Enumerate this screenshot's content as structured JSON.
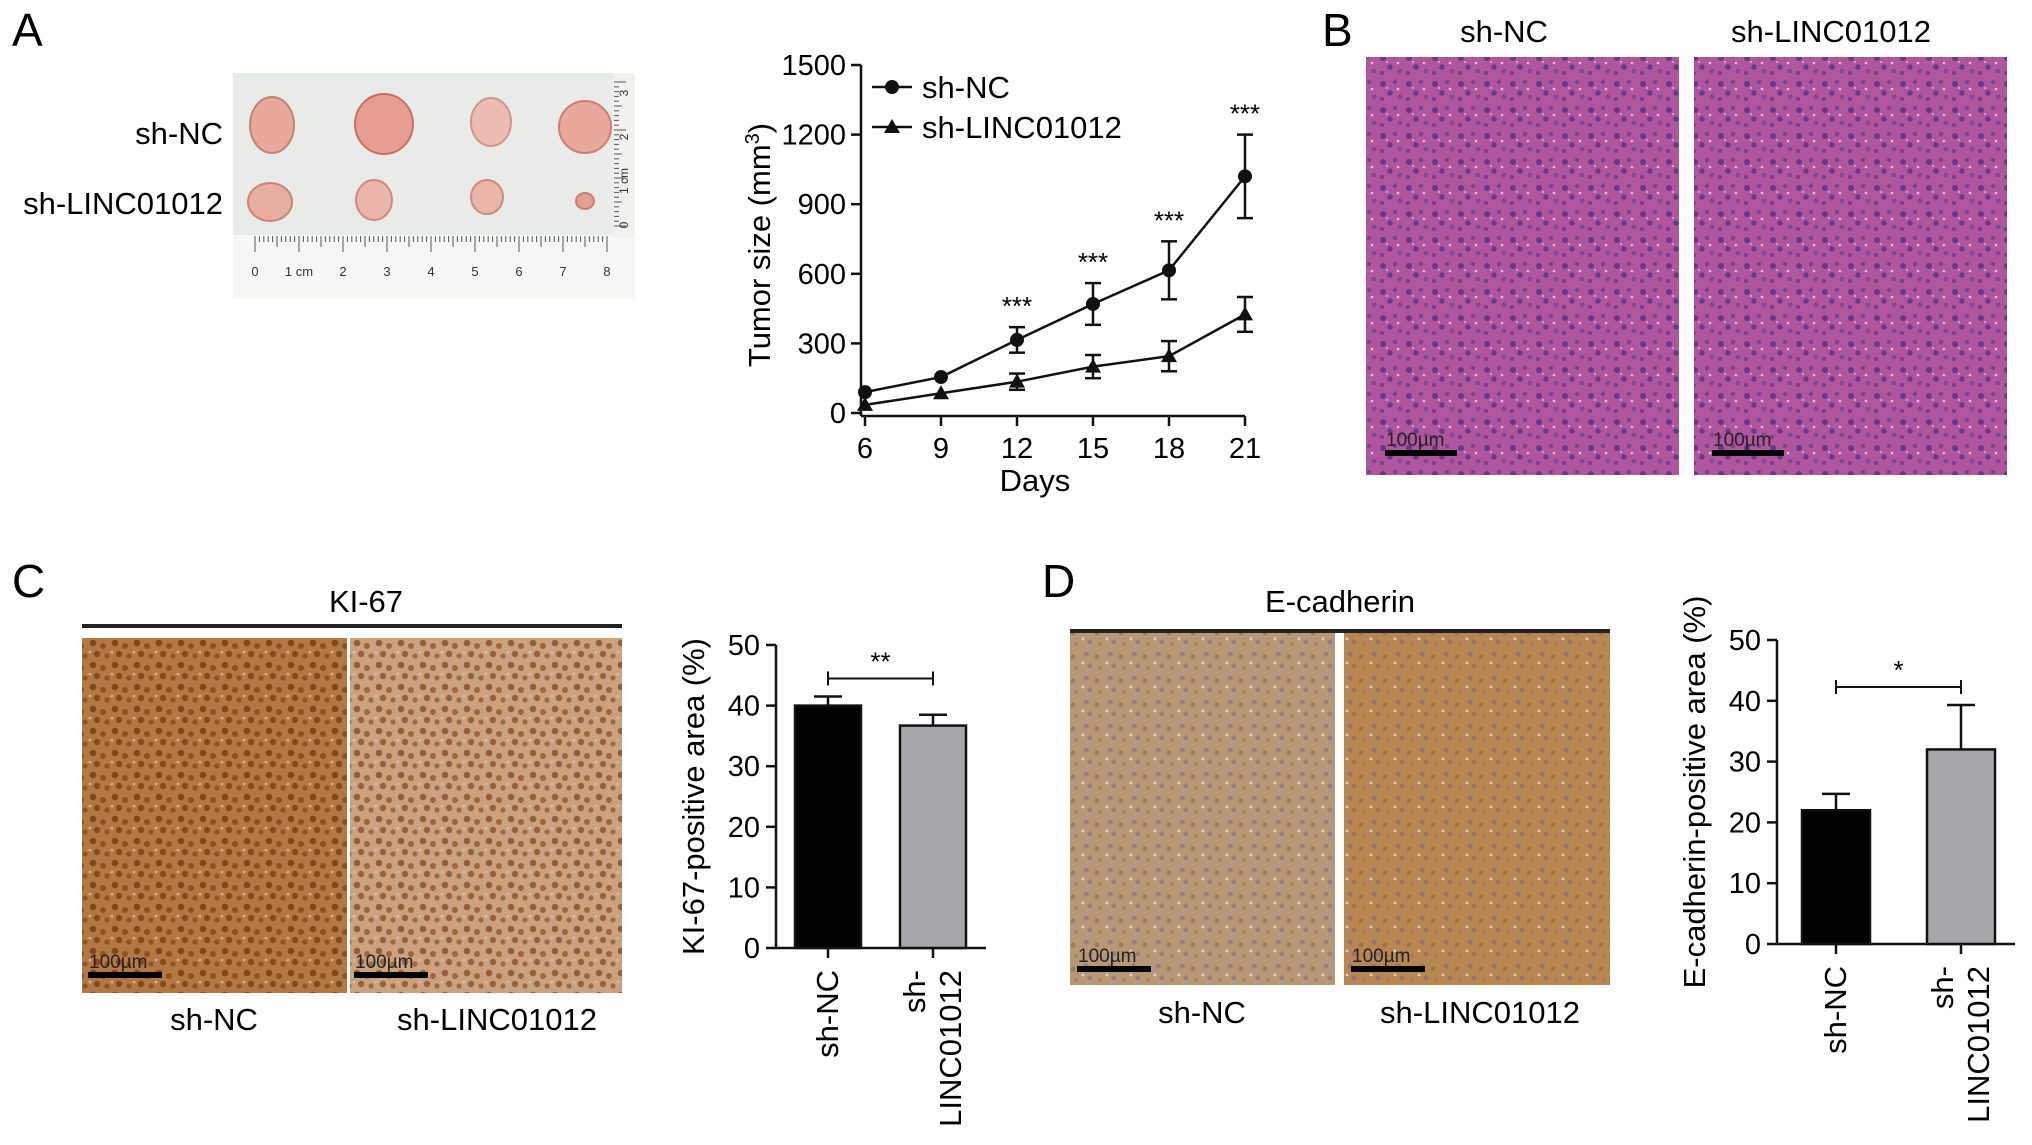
{
  "colors": {
    "he_base": "#b0569c",
    "he_dark": "#5a3f8e",
    "ihc_ki67": "#b37844",
    "ihc_ki67_light": "#cba27f",
    "ihc_ecad": "#b79776",
    "ihc_ecad_dark": "#b88651",
    "bar_black": "#000000",
    "bar_gray": "#a7a7ab"
  },
  "panel_a": {
    "letter": "A",
    "photo_row_labels": [
      "sh-NC",
      "sh-LINC01012"
    ],
    "ruler_bottom_labels": [
      "0",
      "1 cm",
      "2",
      "3",
      "4",
      "5",
      "6",
      "7",
      "8"
    ],
    "ruler_side_labels": [
      "3",
      "2",
      "1 cm",
      "0"
    ]
  },
  "panel_b": {
    "letter": "B",
    "titles": [
      "sh-NC",
      "sh-LINC01012"
    ],
    "scalebar": "100µm"
  },
  "panel_c": {
    "letter": "C",
    "header": "KI-67",
    "image_labels": [
      "sh-NC",
      "sh-LINC01012"
    ],
    "scalebar": "100µm"
  },
  "panel_d": {
    "letter": "D",
    "header": "E-cadherin",
    "image_labels": [
      "sh-NC",
      "sh-LINC01012"
    ],
    "scalebar": "100µm"
  },
  "chart_data": [
    {
      "id": "tumor-growth",
      "type": "line",
      "xlabel": "Days",
      "ylabel": "Tumor size (mm",
      "ylabel_sup": "3",
      "ylabel_close": ")",
      "x": [
        6,
        9,
        12,
        15,
        18,
        21
      ],
      "ylim": [
        0,
        1500
      ],
      "yticks": [
        0,
        300,
        600,
        900,
        1200,
        1500
      ],
      "legend": "top-left",
      "series": [
        {
          "name": "sh-NC",
          "marker": "circle",
          "values": [
            90,
            155,
            315,
            470,
            615,
            1020
          ],
          "errors": [
            0,
            0,
            55,
            90,
            125,
            180
          ]
        },
        {
          "name": "sh-LINC01012",
          "marker": "triangle",
          "values": [
            35,
            85,
            135,
            200,
            245,
            425
          ],
          "errors": [
            0,
            0,
            35,
            50,
            65,
            75
          ]
        }
      ],
      "annotations": [
        {
          "x": 12,
          "text": "***"
        },
        {
          "x": 15,
          "text": "***"
        },
        {
          "x": 18,
          "text": "***"
        },
        {
          "x": 21,
          "text": "***"
        }
      ]
    },
    {
      "id": "ki67-bars",
      "type": "bar",
      "ylabel": "KI-67-positive area (%)",
      "categories": [
        "sh-NC",
        "sh-LINC01012"
      ],
      "category_lines": [
        [
          "sh-NC"
        ],
        [
          "sh-",
          "LINC01012"
        ]
      ],
      "values": [
        40,
        36.7
      ],
      "errors": [
        1.5,
        1.8
      ],
      "ylim": [
        0,
        50
      ],
      "yticks": [
        0,
        10,
        20,
        30,
        40,
        50
      ],
      "significance": "**"
    },
    {
      "id": "ecad-bars",
      "type": "bar",
      "ylabel": "E-cadherin-positive area (%)",
      "categories": [
        "sh-NC",
        "sh-LINC01012"
      ],
      "category_lines": [
        [
          "sh-NC"
        ],
        [
          "sh-",
          "LINC01012"
        ]
      ],
      "values": [
        22,
        32
      ],
      "errors": [
        2.7,
        7.3
      ],
      "ylim": [
        0,
        50
      ],
      "yticks": [
        0,
        10,
        20,
        30,
        40,
        50
      ],
      "significance": "*"
    }
  ]
}
